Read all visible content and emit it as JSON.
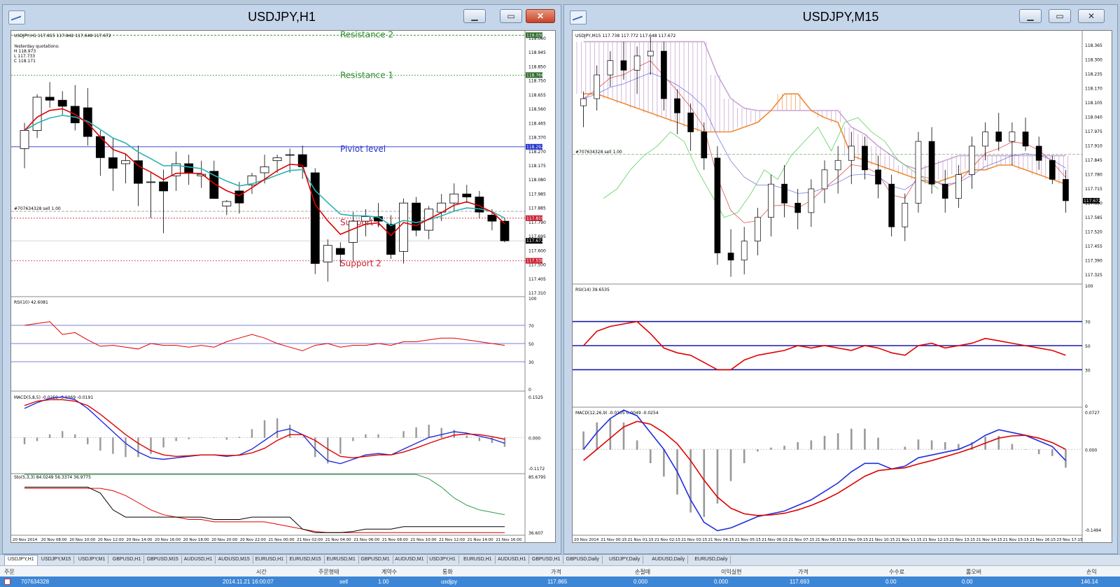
{
  "windows": {
    "left": {
      "title": "USDJPY,H1",
      "info": "USDJPY,H1  117.815 117.842 117.648 117.672",
      "yesterday": {
        "label": "Yesterday quotations:",
        "h": "H 118.973",
        "l": "L 117.733",
        "c": "C 118.171"
      },
      "levels": {
        "resistance2": "Resistance 2",
        "resistance1": "Resistance 1",
        "pivot": "Piviot level",
        "support1": "Support 1",
        "support2": "Support 2"
      },
      "order_label": "#707634328 sell 1.00",
      "price_ticks": [
        "119.040",
        "118.945",
        "118.850",
        "118.750",
        "118.655",
        "118.560",
        "118.465",
        "118.370",
        "118.270",
        "118.175",
        "118.080",
        "117.985",
        "117.885",
        "117.790",
        "117.695",
        "117.600",
        "117.500",
        "117.405",
        "117.310"
      ],
      "badges": {
        "r2": "119.030",
        "r1": "118.766",
        "pivot": "118.292",
        "order": "117.819",
        "bid": "117.672",
        "s2": "117.538"
      },
      "rsi": {
        "label": "RSI(10) 42.6081",
        "ticks": [
          "100",
          "70",
          "50",
          "30",
          "0"
        ]
      },
      "macd": {
        "label": "MACD(5,8,5) -0.0259 -0.0069 -0.0191",
        "ticks": [
          "0.1525",
          "0.000",
          "-0.1172"
        ]
      },
      "stoch": {
        "label": "Sto(5,3,3) 84.0249 56.3374 36.9775",
        "ticks": [
          "85.6795",
          "36.607"
        ]
      },
      "time_labels": [
        "20 Nov 2014",
        "20 Nov 08:00",
        "20 Nov 10:00",
        "20 Nov 12:00",
        "20 Nov 14:00",
        "20 Nov 16:00",
        "20 Nov 18:00",
        "20 Nov 20:00",
        "20 Nov 22:00",
        "21 Nov 00:00",
        "21 Nov 02:00",
        "21 Nov 04:00",
        "21 Nov 06:00",
        "21 Nov 08:00",
        "21 Nov 10:00",
        "21 Nov 12:00",
        "21 Nov 14:00",
        "21 Nov 16:00"
      ]
    },
    "right": {
      "title": "USDJPY,M15",
      "info": "USDJPY,M15  117.738 117.772 117.648 117.672",
      "order_label": "#707634328 sell 1.00",
      "price_ticks": [
        "118.365",
        "118.300",
        "118.235",
        "118.170",
        "118.105",
        "118.040",
        "117.975",
        "117.910",
        "117.845",
        "117.780",
        "117.715",
        "117.650",
        "117.585",
        "117.520",
        "117.455",
        "117.390",
        "117.325"
      ],
      "bid_badge": "117.672",
      "rsi": {
        "label": "RSI(14) 39.6535",
        "ticks": [
          "100",
          "70",
          "50",
          "30",
          "0"
        ]
      },
      "macd": {
        "label": "MACD(12,26,9) -0.0205 0.0049 -0.0254",
        "ticks": [
          "0.0727",
          "0.000",
          "-0.1494"
        ]
      },
      "time_labels": [
        "20 Nov 2014",
        "21 Nov 00:15",
        "21 Nov 01:15",
        "21 Nov 02:15",
        "21 Nov 03:15",
        "21 Nov 04:15",
        "21 Nov 05:15",
        "21 Nov 06:15",
        "21 Nov 07:15",
        "21 Nov 08:15",
        "21 Nov 09:15",
        "21 Nov 10:15",
        "21 Nov 11:15",
        "21 Nov 12:15",
        "21 Nov 13:15",
        "21 Nov 14:15",
        "21 Nov 15:15",
        "21 Nov 16:15",
        "23 Nov 17:15"
      ]
    }
  },
  "tabs": [
    "USDJPY,H1",
    "USDJPY,M15",
    "USDJPY,M1",
    "GBPUSD,H1",
    "GBPUSD,M15",
    "AUDUSD,H1",
    "AUDUSD,M15",
    "EURUSD,H1",
    "EURUSD,M15",
    "EURUSD,M1",
    "GBPUSD,M1",
    "AUDUSD,M1",
    "USDJPY,H1",
    "EURUSD,H1",
    "AUDUSD,H1",
    "GBPUSD,H1",
    "GBPUSD,Daily",
    "USDJPY,Daily",
    "AUDUSD,Daily",
    "EURUSD,Daily"
  ],
  "trade": {
    "headers": [
      "주문",
      "시간",
      "주문형태",
      "계약수",
      "통화",
      "가격",
      "손절매",
      "이익실현",
      "가격",
      "수수료",
      "롤오버",
      "손익"
    ],
    "row": [
      "707634328",
      "2014.11.21 16:00:07",
      "sell",
      "1.00",
      "usdjpy",
      "117.865",
      "0.000",
      "0.000",
      "117.693",
      "0.00",
      "0.00",
      "146.14"
    ]
  },
  "chart_data": [
    {
      "type": "candlestick",
      "title": "USDJPY,H1",
      "ohlc": [
        [
          118.28,
          118.45,
          118.15,
          118.4
        ],
        [
          118.4,
          118.64,
          118.35,
          118.62
        ],
        [
          118.62,
          118.72,
          118.55,
          118.6
        ],
        [
          118.6,
          118.66,
          118.5,
          118.56
        ],
        [
          118.56,
          118.7,
          118.4,
          118.45
        ],
        [
          118.55,
          118.68,
          118.3,
          118.36
        ],
        [
          118.36,
          118.4,
          118.1,
          118.22
        ],
        [
          118.22,
          118.35,
          118.0,
          118.15
        ],
        [
          118.18,
          118.24,
          118.05,
          118.2
        ],
        [
          118.2,
          118.3,
          117.9,
          118.05
        ],
        [
          118.06,
          118.12,
          117.82,
          118.06
        ],
        [
          118.06,
          118.14,
          117.72,
          118.0
        ],
        [
          118.1,
          118.26,
          118.0,
          118.18
        ],
        [
          118.18,
          118.24,
          118.04,
          118.12
        ],
        [
          118.1,
          118.2,
          118.02,
          118.11
        ],
        [
          118.13,
          118.2,
          117.95,
          117.95
        ],
        [
          117.9,
          117.94,
          117.84,
          117.93
        ],
        [
          118.0,
          118.06,
          117.85,
          117.92
        ],
        [
          118.04,
          118.12,
          117.98,
          118.1
        ],
        [
          118.12,
          118.24,
          118.05,
          118.16
        ],
        [
          118.2,
          118.24,
          118.12,
          118.22
        ],
        [
          118.24,
          118.28,
          118.12,
          118.24
        ],
        [
          118.24,
          118.3,
          118.08,
          118.16
        ],
        [
          118.12,
          118.15,
          117.45,
          117.52
        ],
        [
          117.53,
          117.68,
          117.4,
          117.64
        ],
        [
          117.62,
          117.66,
          117.5,
          117.58
        ],
        [
          117.66,
          117.86,
          117.54,
          117.8
        ],
        [
          117.8,
          117.88,
          117.7,
          117.83
        ],
        [
          117.83,
          117.92,
          117.76,
          117.8
        ],
        [
          117.78,
          117.84,
          117.55,
          117.58
        ],
        [
          117.6,
          117.95,
          117.52,
          117.92
        ],
        [
          117.92,
          117.96,
          117.7,
          117.74
        ],
        [
          117.74,
          117.9,
          117.68,
          117.88
        ],
        [
          117.86,
          117.98,
          117.8,
          117.92
        ],
        [
          117.92,
          118.05,
          117.86,
          117.98
        ],
        [
          117.98,
          118.04,
          117.92,
          117.96
        ],
        [
          117.96,
          118.0,
          117.82,
          117.86
        ],
        [
          117.84,
          117.88,
          117.74,
          117.8
        ],
        [
          117.8,
          117.82,
          117.66,
          117.67
        ]
      ],
      "levels": {
        "resistance2": 119.03,
        "resistance1": 118.766,
        "pivot": 118.292,
        "support1": 117.82,
        "support2": 117.538
      },
      "ylim": [
        117.31,
        119.05
      ]
    },
    {
      "type": "candlestick",
      "title": "USDJPY,M15",
      "ohlc": [
        [
          118.07,
          118.13,
          117.98,
          118.1
        ],
        [
          118.1,
          118.24,
          118.05,
          118.2
        ],
        [
          118.2,
          118.3,
          118.15,
          118.26
        ],
        [
          118.26,
          118.34,
          118.18,
          118.22
        ],
        [
          118.22,
          118.32,
          118.12,
          118.28
        ],
        [
          118.28,
          118.36,
          118.2,
          118.3
        ],
        [
          118.3,
          118.34,
          118.05,
          118.1
        ],
        [
          118.1,
          118.14,
          117.95,
          118.04
        ],
        [
          118.04,
          118.08,
          117.88,
          117.96
        ],
        [
          117.96,
          118.0,
          117.8,
          117.85
        ],
        [
          117.85,
          117.9,
          117.4,
          117.45
        ],
        [
          117.45,
          117.55,
          117.35,
          117.42
        ],
        [
          117.42,
          117.56,
          117.36,
          117.5
        ],
        [
          117.5,
          117.64,
          117.44,
          117.6
        ],
        [
          117.6,
          117.78,
          117.52,
          117.74
        ],
        [
          117.74,
          117.82,
          117.6,
          117.66
        ],
        [
          117.66,
          117.72,
          117.55,
          117.62
        ],
        [
          117.62,
          117.76,
          117.56,
          117.72
        ],
        [
          117.72,
          117.84,
          117.66,
          117.8
        ],
        [
          117.8,
          117.9,
          117.7,
          117.84
        ],
        [
          117.84,
          117.96,
          117.74,
          117.9
        ],
        [
          117.9,
          117.94,
          117.76,
          117.8
        ],
        [
          117.8,
          117.86,
          117.68,
          117.74
        ],
        [
          117.74,
          117.78,
          117.52,
          117.56
        ],
        [
          117.56,
          117.7,
          117.5,
          117.66
        ],
        [
          117.66,
          117.96,
          117.62,
          117.92
        ],
        [
          117.92,
          117.98,
          117.7,
          117.74
        ],
        [
          117.74,
          117.8,
          117.62,
          117.68
        ],
        [
          117.68,
          117.82,
          117.64,
          117.78
        ],
        [
          117.78,
          117.94,
          117.72,
          117.9
        ],
        [
          117.9,
          118.0,
          117.84,
          117.96
        ],
        [
          117.96,
          118.04,
          117.88,
          117.92
        ],
        [
          117.92,
          118.0,
          117.82,
          117.96
        ],
        [
          117.96,
          118.02,
          117.88,
          117.9
        ],
        [
          117.9,
          117.94,
          117.8,
          117.84
        ],
        [
          117.84,
          117.86,
          117.74,
          117.76
        ],
        [
          117.76,
          117.8,
          117.62,
          117.67
        ]
      ],
      "ylim": [
        117.325,
        118.38
      ]
    }
  ]
}
